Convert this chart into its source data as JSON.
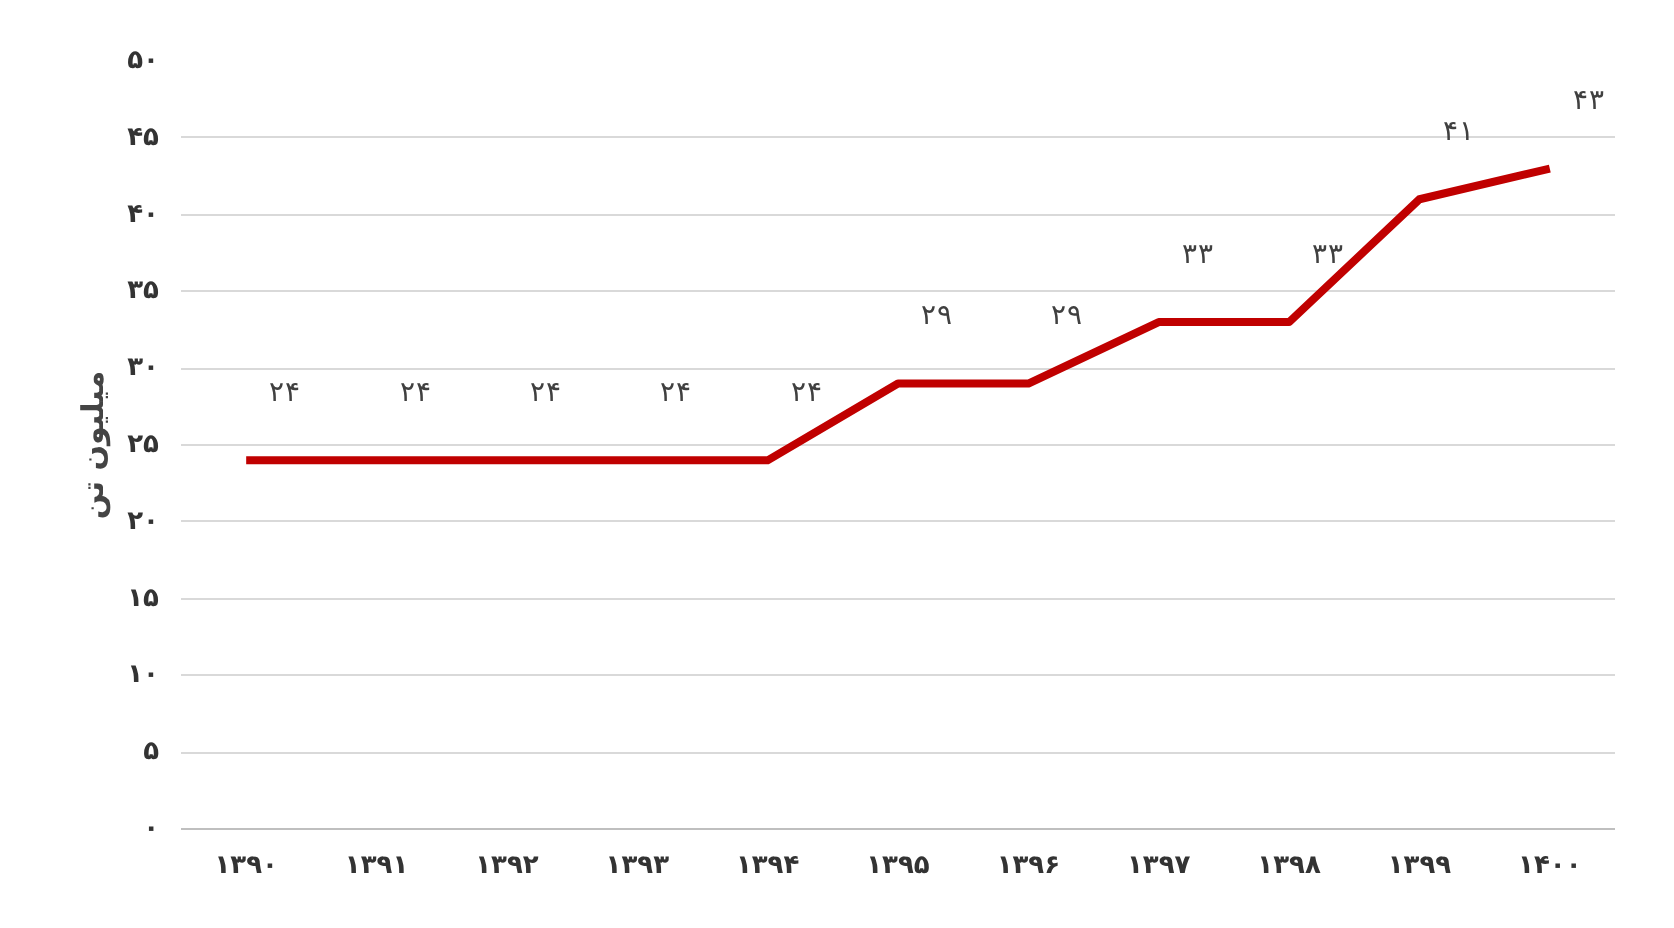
{
  "chart_data": {
    "type": "line",
    "ylabel": "میلیون تن",
    "categories": [
      "۱۳۹۰",
      "۱۳۹۱",
      "۱۳۹۲",
      "۱۳۹۳",
      "۱۳۹۴",
      "۱۳۹۵",
      "۱۳۹۶",
      "۱۳۹۷",
      "۱۳۹۸",
      "۱۳۹۹",
      "۱۴۰۰"
    ],
    "series": [
      {
        "color": "#c00000",
        "values": [
          24,
          24,
          24,
          24,
          24,
          29,
          29,
          33,
          33,
          41,
          43
        ],
        "value_labels": [
          "۲۴",
          "۲۴",
          "۲۴",
          "۲۴",
          "۲۴",
          "۲۹",
          "۲۹",
          "۳۳",
          "۳۳",
          "۴۱",
          "۴۳"
        ]
      }
    ],
    "ylim": [
      0,
      50
    ],
    "yticks": [
      {
        "value": 0,
        "label": "۰"
      },
      {
        "value": 5,
        "label": "۵"
      },
      {
        "value": 10,
        "label": "۱۰"
      },
      {
        "value": 15,
        "label": "۱۵"
      },
      {
        "value": 20,
        "label": "۲۰"
      },
      {
        "value": 25,
        "label": "۲۵"
      },
      {
        "value": 30,
        "label": "۳۰"
      },
      {
        "value": 35,
        "label": "۳۵"
      },
      {
        "value": 40,
        "label": "۴۰"
      },
      {
        "value": 45,
        "label": "۴۵"
      },
      {
        "value": 50,
        "label": "۵۰"
      }
    ],
    "grid": "y",
    "marker": "none",
    "line_style": "solid"
  }
}
